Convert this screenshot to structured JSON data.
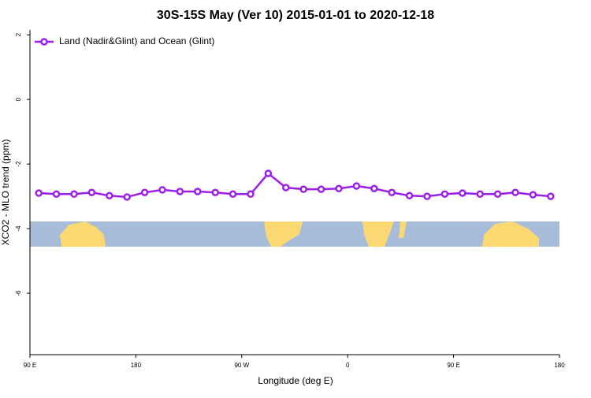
{
  "chart_data": {
    "type": "line",
    "title": "30S-15S May (Ver 10)   2015-01-01 to 2020-12-18",
    "x_label": "Longitude (deg E)",
    "y_label": "XCO2 - MLO trend (ppm)",
    "x": [
      97.5,
      112.5,
      127.5,
      142.5,
      157.5,
      172.5,
      187.5,
      202.5,
      217.5,
      232.5,
      247.5,
      262.5,
      277.5,
      292.5,
      307.5,
      322.5,
      337.5,
      352.5,
      367.5,
      382.5,
      397.5,
      412.5,
      427.5,
      442.5,
      457.5,
      472.5,
      487.5,
      502.5,
      517.5,
      532.5
    ],
    "series": [
      {
        "name": "Land (Nadir&Glint) and Ocean (Glint)",
        "color": "#9b1fe8",
        "values": [
          -2.9,
          -2.93,
          -2.93,
          -2.88,
          -2.98,
          -3.02,
          -2.88,
          -2.8,
          -2.85,
          -2.85,
          -2.88,
          -2.93,
          -2.93,
          -2.29,
          -2.73,
          -2.78,
          -2.78,
          -2.76,
          -2.68,
          -2.76,
          -2.88,
          -2.98,
          -3.0,
          -2.93,
          -2.9,
          -2.93,
          -2.93,
          -2.88,
          -2.95,
          -3.0
        ]
      }
    ],
    "xlim": [
      90,
      540
    ],
    "xticks": [
      {
        "value": 90,
        "label": "90 E"
      },
      180,
      {
        "value": 270,
        "label": "90 W"
      },
      {
        "value": 360,
        "label": "0"
      },
      {
        "value": 450,
        "label": "90 E"
      },
      {
        "value": 540,
        "label": "180"
      }
    ],
    "ylim": [
      -7.9,
      2.15
    ],
    "yticks": [
      2,
      0,
      -2,
      -4,
      -6
    ],
    "grid": false,
    "legend": "top-left"
  }
}
